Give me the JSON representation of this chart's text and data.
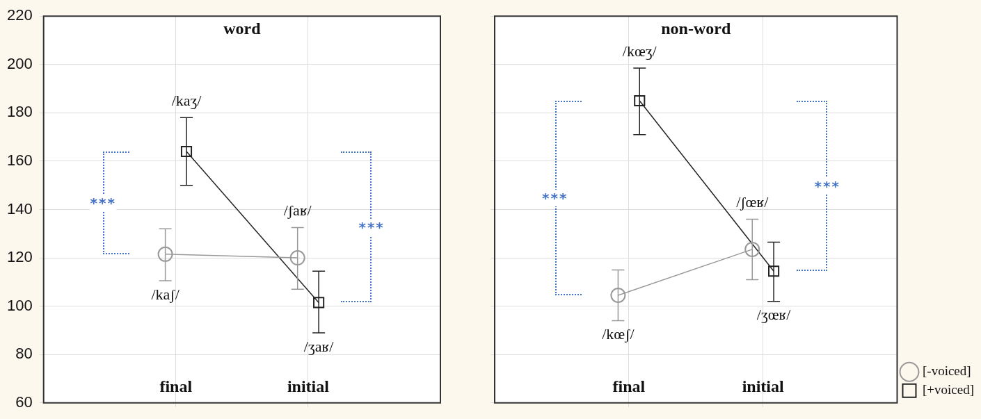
{
  "chart_data": [
    {
      "type": "line",
      "title": "word",
      "categories": [
        "final",
        "initial"
      ],
      "series": [
        {
          "color": "#999999",
          "marker": "circle",
          "values": [
            121.5,
            120
          ],
          "errors": [
            [
              110.5,
              132
            ],
            [
              107,
              132.5
            ]
          ]
        },
        {
          "color": "#222222",
          "marker": "square",
          "values": [
            164,
            101.5
          ],
          "errors": [
            [
              150,
              178
            ],
            [
              89,
              114.5
            ]
          ]
        }
      ],
      "ylim": [
        60,
        220
      ],
      "yticks": [
        60,
        80,
        100,
        120,
        140,
        160,
        180,
        200,
        220
      ],
      "grid": true,
      "annotations": [
        "/kaʃ/",
        "/ʃaʁ/",
        "/kaʒ/",
        "/ʒaʁ/",
        "***",
        "***"
      ]
    },
    {
      "type": "line",
      "title": "non-word",
      "categories": [
        "final",
        "initial"
      ],
      "series": [
        {
          "name": "[-voiced]",
          "color": "#999999",
          "marker": "circle",
          "values": [
            104.5,
            123.5
          ],
          "errors": [
            [
              94,
              115
            ],
            [
              111,
              136
            ]
          ]
        },
        {
          "name": "[+voiced]",
          "color": "#222222",
          "marker": "square",
          "values": [
            185,
            114.5
          ],
          "errors": [
            [
              171,
              198.5
            ],
            [
              102,
              126.5
            ]
          ]
        }
      ],
      "ylim": [
        60,
        220
      ],
      "yticks": [
        60,
        80,
        100,
        120,
        140,
        160,
        180,
        200,
        220
      ],
      "grid": true,
      "tick_labels": "x",
      "legend": "bottom right",
      "annotations": [
        "/kœʃ/",
        "/ʃœʁ/",
        "/kœʒ/",
        "/ʒœʁ/",
        "***",
        "***"
      ]
    }
  ]
}
